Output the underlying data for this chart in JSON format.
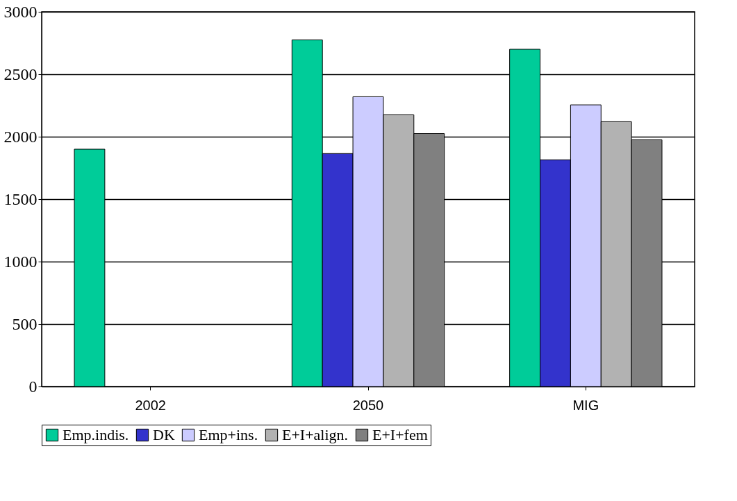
{
  "chart_data": {
    "type": "bar",
    "categories": [
      "2002",
      "2050",
      "MIG"
    ],
    "series": [
      {
        "name": "Emp.indis.",
        "color": "#00cc99",
        "values": [
          1900,
          2775,
          2700
        ]
      },
      {
        "name": "DK",
        "color": "#3333cc",
        "values": [
          null,
          1865,
          1815
        ]
      },
      {
        "name": "Emp+ins.",
        "color": "#ccccff",
        "values": [
          null,
          2320,
          2255
        ]
      },
      {
        "name": "E+I+align.",
        "color": "#b2b2b2",
        "values": [
          null,
          2175,
          2120
        ]
      },
      {
        "name": "E+I+fem",
        "color": "#808080",
        "values": [
          null,
          2025,
          1975
        ]
      }
    ],
    "ylim": [
      0,
      3000
    ],
    "yticks": [
      0,
      500,
      1000,
      1500,
      2000,
      2500,
      3000
    ],
    "grid": "y",
    "legend": "bottom"
  }
}
